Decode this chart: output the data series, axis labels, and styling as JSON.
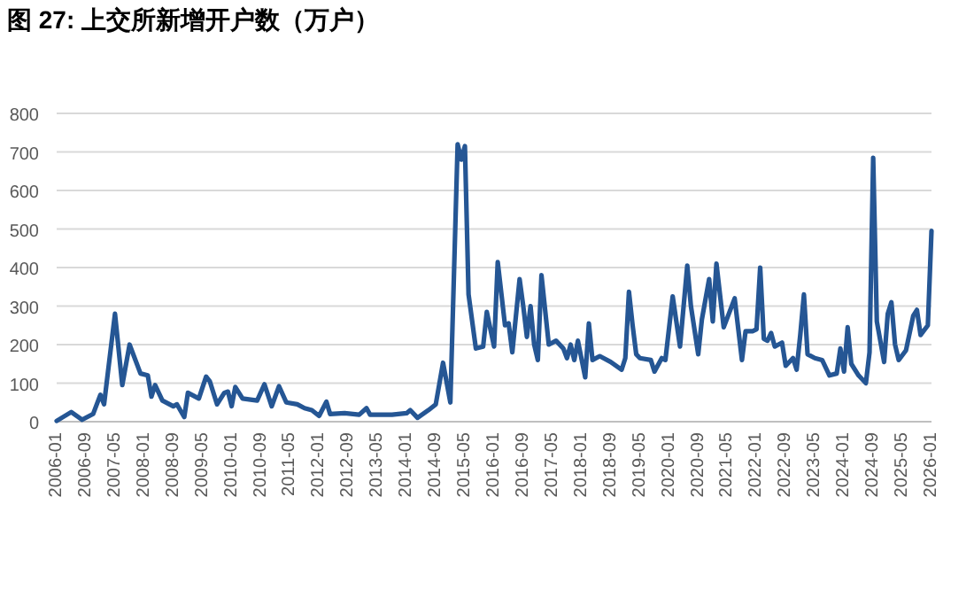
{
  "chart_data": {
    "type": "line",
    "title": "图 27:  上交所新增开户数（万户）",
    "color": "#255694",
    "grid": "y",
    "marker": "none",
    "xlim": [
      "2006-01",
      "2026-01"
    ],
    "xticks": [
      "2006-01",
      "2006-09",
      "2007-05",
      "2008-01",
      "2008-09",
      "2009-05",
      "2010-01",
      "2010-09",
      "2011-05",
      "2012-01",
      "2012-09",
      "2013-05",
      "2014-01",
      "2014-09",
      "2015-05",
      "2016-01",
      "2016-09",
      "2017-05",
      "2018-01",
      "2018-09",
      "2019-05",
      "2020-01",
      "2020-09",
      "2021-05",
      "2022-01",
      "2022-09",
      "2023-05",
      "2024-01",
      "2024-09",
      "2025-05",
      "2026-01"
    ],
    "ylim": [
      0,
      800
    ],
    "yticks": [
      0,
      100,
      200,
      300,
      400,
      500,
      600,
      700,
      800
    ],
    "x": [
      "2006-01",
      "2006-05",
      "2006-08",
      "2006-11",
      "2007-01",
      "2007-02",
      "2007-05",
      "2007-07",
      "2007-09",
      "2007-12",
      "2008-02",
      "2008-03",
      "2008-04",
      "2008-06",
      "2008-09",
      "2008-10",
      "2008-12",
      "2009-01",
      "2009-04",
      "2009-06",
      "2009-07",
      "2009-09",
      "2009-11",
      "2009-12",
      "2010-01",
      "2010-02",
      "2010-04",
      "2010-08",
      "2010-10",
      "2010-12",
      "2011-02",
      "2011-04",
      "2011-07",
      "2011-09",
      "2011-11",
      "2012-01",
      "2012-03",
      "2012-04",
      "2012-08",
      "2012-12",
      "2013-02",
      "2013-03",
      "2013-09",
      "2014-01",
      "2014-02",
      "2014-04",
      "2014-07",
      "2014-09",
      "2014-11",
      "2015-01",
      "2015-03",
      "2015-04",
      "2015-05",
      "2015-06",
      "2015-08",
      "2015-10",
      "2015-11",
      "2016-01",
      "2016-02",
      "2016-04",
      "2016-05",
      "2016-06",
      "2016-08",
      "2016-09",
      "2016-10",
      "2016-11",
      "2016-12",
      "2017-01",
      "2017-02",
      "2017-04",
      "2017-06",
      "2017-08",
      "2017-09",
      "2017-10",
      "2017-11",
      "2017-12",
      "2018-02",
      "2018-03",
      "2018-04",
      "2018-06",
      "2018-09",
      "2018-12",
      "2019-01",
      "2019-02",
      "2019-03",
      "2019-04",
      "2019-05",
      "2019-08",
      "2019-09",
      "2019-11",
      "2019-12",
      "2020-02",
      "2020-04",
      "2020-06",
      "2020-07",
      "2020-09",
      "2020-10",
      "2020-12",
      "2021-01",
      "2021-02",
      "2021-04",
      "2021-05",
      "2021-07",
      "2021-08",
      "2021-09",
      "2021-10",
      "2021-12",
      "2022-01",
      "2022-02",
      "2022-03",
      "2022-04",
      "2022-05",
      "2022-06",
      "2022-08",
      "2022-09",
      "2022-11",
      "2022-12",
      "2023-01",
      "2023-02",
      "2023-03",
      "2023-05",
      "2023-07",
      "2023-09",
      "2023-11",
      "2023-12",
      "2024-01",
      "2024-02",
      "2024-03",
      "2024-05",
      "2024-07",
      "2024-08",
      "2024-09",
      "2024-10",
      "2024-12",
      "2025-01",
      "2025-02",
      "2025-03",
      "2025-04",
      "2025-06",
      "2025-08",
      "2025-09",
      "2025-10",
      "2025-12",
      "2026-01"
    ],
    "values": [
      2,
      25,
      5,
      20,
      70,
      45,
      280,
      95,
      200,
      125,
      120,
      65,
      95,
      55,
      40,
      45,
      12,
      75,
      60,
      117,
      105,
      45,
      75,
      78,
      40,
      90,
      60,
      55,
      97,
      40,
      92,
      50,
      45,
      35,
      30,
      15,
      52,
      20,
      22,
      18,
      35,
      18,
      18,
      22,
      30,
      10,
      30,
      45,
      153,
      50,
      720,
      680,
      715,
      330,
      190,
      195,
      285,
      195,
      414,
      250,
      255,
      180,
      370,
      300,
      220,
      300,
      200,
      160,
      380,
      200,
      210,
      190,
      165,
      200,
      160,
      210,
      115,
      255,
      160,
      170,
      155,
      135,
      165,
      337,
      250,
      175,
      165,
      160,
      130,
      165,
      160,
      325,
      195,
      405,
      300,
      175,
      265,
      370,
      260,
      410,
      245,
      270,
      320,
      240,
      160,
      235,
      235,
      240,
      400,
      215,
      210,
      230,
      195,
      205,
      145,
      165,
      135,
      225,
      330,
      175,
      165,
      160,
      120,
      125,
      190,
      130,
      245,
      150,
      120,
      100,
      180,
      685,
      260,
      155,
      280,
      310,
      200,
      160,
      185,
      275,
      290,
      225,
      250,
      495
    ]
  }
}
